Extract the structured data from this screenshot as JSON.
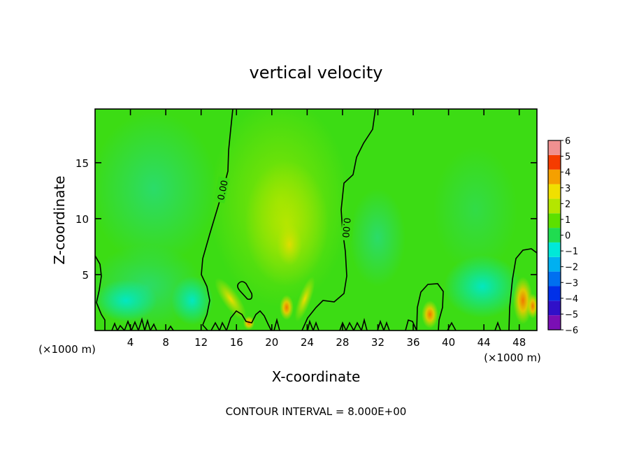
{
  "chart_data": {
    "type": "heatmap",
    "title": "vertical velocity",
    "xlabel": "X-coordinate",
    "ylabel": "Z-coordinate",
    "x_unit_left": "(×1000 m)",
    "x_unit_right": "(×1000 m)",
    "footer": "CONTOUR INTERVAL = 8.000E+00",
    "xlim": [
      0,
      50
    ],
    "ylim": [
      0,
      19.8
    ],
    "xticks": [
      4,
      8,
      12,
      16,
      20,
      24,
      28,
      32,
      36,
      40,
      44,
      48
    ],
    "yticks": [
      5,
      10,
      15
    ],
    "contour_label": "0.00",
    "colorbar": {
      "min": -6,
      "max": 6,
      "ticks": [
        6,
        5,
        4,
        3,
        2,
        1,
        0,
        -1,
        -2,
        -3,
        -4,
        -5,
        -6
      ],
      "colors": [
        "#7a0fb4",
        "#3010c8",
        "#0030e8",
        "#0070f0",
        "#00b0f0",
        "#00e8d8",
        "#20dc50",
        "#5ce000",
        "#b4e600",
        "#f0e000",
        "#f5a000",
        "#f53c00",
        "#f09090"
      ]
    },
    "features": [
      {
        "x": 22,
        "z": 11,
        "value": 1.2
      },
      {
        "x": 22,
        "z": 7.5,
        "value": 1.5
      },
      {
        "x": 22,
        "z": 2,
        "value": 3
      },
      {
        "x": 15,
        "z": 3.5,
        "value": 1.5
      },
      {
        "x": 17.5,
        "z": 0.8,
        "value": 2
      },
      {
        "x": 37.5,
        "z": 1.5,
        "value": 3
      },
      {
        "x": 48.5,
        "z": 2.5,
        "value": 3.5
      },
      {
        "x": 3,
        "z": 3,
        "value": -1.5
      },
      {
        "x": 11,
        "z": 2.2,
        "value": -1.5
      },
      {
        "x": 32.5,
        "z": 8,
        "value": -0.8
      },
      {
        "x": 44,
        "z": 3.5,
        "value": -1.8
      },
      {
        "x": 6,
        "z": 14,
        "value": -0.6
      }
    ]
  }
}
